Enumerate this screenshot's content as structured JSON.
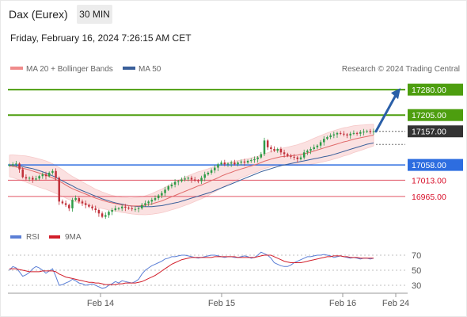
{
  "header": {
    "title": "Dax (Eurex)",
    "timeframe": "30 MIN",
    "timestamp": "Friday, February 16, 2024 7:26:15 AM CET"
  },
  "legend": {
    "ma20": "MA 20 + Bollinger Bands",
    "ma50": "MA 50",
    "credit": "Research © 2024 Trading Central"
  },
  "colors": {
    "resistance": "#4d9e0f",
    "current": "#333333",
    "pivot": "#2d6de0",
    "support": "#e05565",
    "support_text": "#d8102a",
    "ma20": "#e06a6a",
    "ma50": "#3a5f9a",
    "bollinger_fill": "#fbe1e1",
    "candle_up": "#2e9b47",
    "candle_down": "#c0303a",
    "arrow": "#2a5fa8",
    "rsi": "#5b7fd6",
    "rsi_ma": "#d21e2a"
  },
  "chart_data": [
    {
      "type": "candlestick",
      "price_range": [
        16890,
        17320
      ],
      "levels": [
        {
          "label": "17280.00",
          "value": 17280,
          "kind": "resistance"
        },
        {
          "label": "17205.00",
          "value": 17205,
          "kind": "resistance"
        },
        {
          "label": "17157.00",
          "value": 17157,
          "kind": "current"
        },
        {
          "label": "17058.00",
          "value": 17058,
          "kind": "pivot"
        },
        {
          "label": "17013.00",
          "value": 17013,
          "kind": "support"
        },
        {
          "label": "16965.00",
          "value": 16965,
          "kind": "support"
        }
      ],
      "close": [
        17058,
        17060,
        17062,
        17045,
        17022,
        17018,
        17020,
        17015,
        17018,
        17025,
        17030,
        17025,
        17035,
        17040,
        17020,
        16950,
        16945,
        16940,
        16930,
        16955,
        16960,
        16950,
        16945,
        16940,
        16935,
        16930,
        16925,
        16915,
        16905,
        16910,
        16920,
        16925,
        16930,
        16930,
        16935,
        16932,
        16930,
        16928,
        16928,
        16930,
        16940,
        16945,
        16950,
        16955,
        16960,
        16968,
        16975,
        16985,
        16995,
        17000,
        17008,
        17010,
        17015,
        17018,
        17020,
        17015,
        17012,
        17010,
        17020,
        17030,
        17035,
        17042,
        17050,
        17060,
        17065,
        17060,
        17062,
        17065,
        17060,
        17065,
        17068,
        17065,
        17070,
        17072,
        17075,
        17080,
        17090,
        17130,
        17110,
        17105,
        17100,
        17105,
        17095,
        17090,
        17085,
        17082,
        17080,
        17075,
        17080,
        17095,
        17100,
        17105,
        17110,
        17115,
        17125,
        17135,
        17140,
        17145,
        17148,
        17152,
        17150,
        17148,
        17145,
        17150,
        17152,
        17150,
        17155,
        17156,
        17158,
        17155,
        17157
      ],
      "ma20": [
        17055,
        17054,
        17052,
        17050,
        17048,
        17046,
        17043,
        17040,
        17037,
        17034,
        17031,
        17028,
        17024,
        17020,
        17015,
        17010,
        17005,
        16999,
        16993,
        16988,
        16984,
        16980,
        16976,
        16972,
        16968,
        16964,
        16960,
        16957,
        16954,
        16951,
        16948,
        16946,
        16944,
        16942,
        16940,
        16939,
        16938,
        16937,
        16937,
        16937,
        16938,
        16939,
        16941,
        16943,
        16946,
        16949,
        16952,
        16956,
        16960,
        16964,
        16968,
        16972,
        16976,
        16980,
        16984,
        16988,
        16992,
        16996,
        16999,
        17003,
        17007,
        17012,
        17016,
        17020,
        17025,
        17029,
        17033,
        17036,
        17040,
        17043,
        17046,
        17049,
        17052,
        17055,
        17058,
        17061,
        17065,
        17069,
        17072,
        17075,
        17078,
        17080,
        17082,
        17083,
        17084,
        17085,
        17086,
        17087,
        17089,
        17091,
        17093,
        17096,
        17099,
        17102,
        17105,
        17108,
        17111,
        17114,
        17117,
        17120,
        17123,
        17126,
        17128,
        17131,
        17134,
        17136,
        17138,
        17140,
        17142,
        17144,
        17146
      ],
      "ma50": [
        17058,
        17057,
        17056,
        17055,
        17053,
        17051,
        17049,
        17047,
        17044,
        17041,
        17038,
        17034,
        17030,
        17026,
        17021,
        17016,
        17011,
        17006,
        17001,
        16996,
        16991,
        16986,
        16982,
        16978,
        16974,
        16970,
        16966,
        16962,
        16958,
        16955,
        16952,
        16949,
        16946,
        16944,
        16942,
        16940,
        16938,
        16937,
        16936,
        16935,
        16935,
        16935,
        16935,
        16935,
        16936,
        16937,
        16938,
        16940,
        16942,
        16944,
        16946,
        16948,
        16951,
        16954,
        16957,
        16960,
        16963,
        16966,
        16969,
        16972,
        16975,
        16978,
        16982,
        16986,
        16990,
        16994,
        16998,
        17002,
        17006,
        17010,
        17014,
        17018,
        17022,
        17026,
        17030,
        17034,
        17038,
        17041,
        17044,
        17047,
        17050,
        17053,
        17056,
        17058,
        17060,
        17062,
        17064,
        17066,
        17068,
        17070,
        17072,
        17074,
        17076,
        17078,
        17080,
        17082,
        17084,
        17086,
        17089,
        17092,
        17095,
        17098,
        17101,
        17104,
        17107,
        17110,
        17113,
        17116,
        17119,
        17121,
        17123
      ],
      "projection": {
        "from": 17157,
        "to": 17280
      }
    },
    {
      "type": "line",
      "name": "RSI",
      "y_ticks": [
        70,
        50,
        30
      ],
      "x_ticks": [
        "Feb 14",
        "Feb 15",
        "Feb 16",
        "Feb 24"
      ],
      "series": [
        {
          "name": "RSI",
          "values": [
            50,
            55,
            53,
            48,
            42,
            44,
            47,
            52,
            55,
            53,
            50,
            46,
            49,
            52,
            42,
            30,
            31,
            33,
            35,
            38,
            36,
            33,
            32,
            30,
            31,
            32,
            30,
            28,
            26,
            27,
            30,
            32,
            35,
            33,
            36,
            35,
            34,
            33,
            35,
            38,
            45,
            50,
            53,
            56,
            58,
            60,
            62,
            65,
            66,
            68,
            68,
            69,
            70,
            70,
            69,
            68,
            67,
            66,
            67,
            68,
            69,
            70,
            70,
            69,
            68,
            67,
            68,
            68,
            67,
            67,
            68,
            69,
            68,
            66,
            67,
            70,
            74,
            72,
            70,
            66,
            60,
            58,
            56,
            55,
            55,
            57,
            60,
            62,
            64,
            66,
            68,
            68,
            69,
            70,
            70,
            71,
            70,
            69,
            67,
            68,
            69,
            68,
            67,
            66,
            67,
            66,
            65,
            66,
            66,
            65,
            66
          ]
        },
        {
          "name": "9MA",
          "values": [
            52,
            52,
            52,
            51,
            50,
            49,
            48,
            48,
            48,
            48,
            49,
            49,
            49,
            49,
            48,
            45,
            43,
            41,
            40,
            39,
            38,
            37,
            36,
            35,
            34,
            34,
            33,
            33,
            32,
            31,
            31,
            31,
            31,
            32,
            32,
            33,
            33,
            33,
            33,
            34,
            35,
            37,
            39,
            41,
            43,
            46,
            49,
            52,
            55,
            58,
            60,
            62,
            64,
            65,
            66,
            67,
            67,
            67,
            67,
            67,
            67,
            67,
            68,
            68,
            68,
            68,
            68,
            68,
            68,
            67,
            67,
            67,
            67,
            67,
            67,
            68,
            69,
            70,
            70,
            70,
            68,
            66,
            64,
            62,
            61,
            60,
            60,
            60,
            60,
            61,
            62,
            63,
            64,
            65,
            66,
            67,
            68,
            68,
            69,
            69,
            69,
            68,
            68,
            67,
            67,
            67,
            66,
            66,
            66,
            66,
            66
          ]
        }
      ]
    }
  ]
}
